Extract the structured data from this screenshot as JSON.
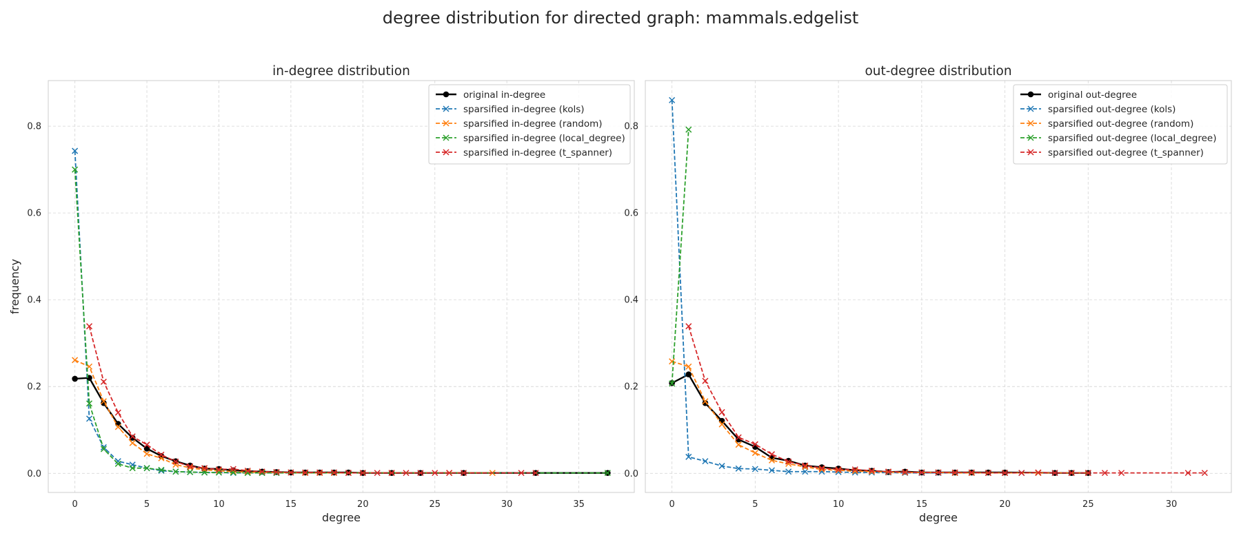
{
  "figure": {
    "title": "degree distribution for directed graph: mammals.edgelist"
  },
  "chart_data": [
    {
      "type": "line",
      "title": "in-degree distribution",
      "xlabel": "degree",
      "ylabel": "frequency",
      "xlim": [
        -1.85,
        38.85
      ],
      "ylim": [
        -0.044,
        0.905
      ],
      "xticks": [
        0,
        5,
        10,
        15,
        20,
        25,
        30,
        35
      ],
      "yticks": [
        0.0,
        0.2,
        0.4,
        0.6,
        0.8
      ],
      "ytick_labels": [
        "0.0",
        "0.2",
        "0.4",
        "0.6",
        "0.8"
      ],
      "grid": true,
      "legend": "top-right",
      "series": [
        {
          "name": "original in-degree",
          "color": "#000000",
          "marker": "dot",
          "style": "solid",
          "x": [
            0,
            1,
            2,
            3,
            4,
            5,
            6,
            7,
            8,
            9,
            10,
            11,
            12,
            13,
            14,
            15,
            16,
            17,
            18,
            19,
            20,
            22,
            24,
            27,
            32,
            37
          ],
          "y": [
            0.218,
            0.22,
            0.162,
            0.114,
            0.082,
            0.057,
            0.04,
            0.028,
            0.018,
            0.011,
            0.01,
            0.007,
            0.005,
            0.004,
            0.003,
            0.002,
            0.002,
            0.002,
            0.002,
            0.002,
            0.001,
            0.001,
            0.001,
            0.001,
            0.001,
            0.001
          ]
        },
        {
          "name": "sparsified in-degree (kols)",
          "color": "#1f77b4",
          "marker": "x",
          "style": "dashed",
          "x": [
            0,
            1,
            2,
            3,
            4,
            5,
            6,
            7,
            8,
            9,
            10,
            11,
            12,
            13,
            14
          ],
          "y": [
            0.743,
            0.126,
            0.06,
            0.028,
            0.02,
            0.012,
            0.006,
            0.004,
            0.003,
            0.002,
            0.002,
            0.001,
            0.001,
            0.001,
            0.001
          ]
        },
        {
          "name": "sparsified in-degree (random)",
          "color": "#ff7f0e",
          "marker": "x",
          "style": "dashed",
          "x": [
            0,
            1,
            2,
            3,
            4,
            5,
            6,
            7,
            8,
            9,
            10,
            11,
            12,
            13,
            14,
            15,
            16,
            17,
            18,
            19,
            20,
            22,
            26,
            29
          ],
          "y": [
            0.261,
            0.246,
            0.166,
            0.107,
            0.07,
            0.045,
            0.035,
            0.02,
            0.013,
            0.008,
            0.006,
            0.004,
            0.003,
            0.002,
            0.002,
            0.002,
            0.001,
            0.001,
            0.001,
            0.001,
            0.001,
            0.001,
            0.001,
            0.001
          ]
        },
        {
          "name": "sparsified in-degree (local_degree)",
          "color": "#2ca02c",
          "marker": "x",
          "style": "dashed",
          "x": [
            0,
            1,
            2,
            3,
            4,
            5,
            6,
            7,
            8,
            9,
            10,
            11,
            12,
            13,
            14,
            37
          ],
          "y": [
            0.7,
            0.161,
            0.056,
            0.022,
            0.012,
            0.012,
            0.008,
            0.004,
            0.003,
            0.002,
            0.002,
            0.002,
            0.001,
            0.001,
            0.001,
            0.001
          ]
        },
        {
          "name": "sparsified in-degree (t_spanner)",
          "color": "#d62728",
          "marker": "x",
          "style": "dashed",
          "x": [
            1,
            2,
            3,
            4,
            5,
            6,
            7,
            8,
            9,
            10,
            11,
            12,
            13,
            14,
            15,
            16,
            17,
            18,
            19,
            20,
            21,
            22,
            23,
            24,
            25,
            26,
            27,
            31,
            32
          ],
          "y": [
            0.339,
            0.211,
            0.14,
            0.085,
            0.066,
            0.043,
            0.027,
            0.016,
            0.012,
            0.009,
            0.01,
            0.006,
            0.004,
            0.003,
            0.002,
            0.002,
            0.002,
            0.002,
            0.001,
            0.001,
            0.001,
            0.001,
            0.001,
            0.001,
            0.001,
            0.001,
            0.001,
            0.001,
            0.001
          ]
        }
      ]
    },
    {
      "type": "line",
      "title": "out-degree distribution",
      "xlabel": "degree",
      "ylabel": "",
      "xlim": [
        -1.6,
        33.6
      ],
      "ylim": [
        -0.044,
        0.905
      ],
      "xticks": [
        0,
        5,
        10,
        15,
        20,
        25,
        30
      ],
      "yticks": [
        0.0,
        0.2,
        0.4,
        0.6,
        0.8
      ],
      "grid": true,
      "legend": "top-right",
      "series": [
        {
          "name": "original out-degree",
          "color": "#000000",
          "marker": "dot",
          "style": "solid",
          "x": [
            0,
            1,
            2,
            3,
            4,
            5,
            6,
            7,
            8,
            9,
            10,
            11,
            12,
            13,
            14,
            15,
            16,
            17,
            18,
            19,
            20,
            23,
            24,
            25
          ],
          "y": [
            0.208,
            0.228,
            0.162,
            0.121,
            0.078,
            0.061,
            0.036,
            0.029,
            0.018,
            0.014,
            0.011,
            0.007,
            0.006,
            0.003,
            0.004,
            0.002,
            0.002,
            0.002,
            0.002,
            0.002,
            0.002,
            0.001,
            0.001,
            0.001
          ]
        },
        {
          "name": "sparsified out-degree (kols)",
          "color": "#1f77b4",
          "marker": "x",
          "style": "dashed",
          "x": [
            0,
            1,
            2,
            3,
            4,
            5,
            6,
            7,
            8,
            9,
            10,
            11,
            12,
            13,
            14,
            15,
            16,
            17,
            18,
            19,
            20,
            21,
            22,
            23,
            24,
            25
          ],
          "y": [
            0.86,
            0.038,
            0.028,
            0.017,
            0.011,
            0.01,
            0.007,
            0.004,
            0.004,
            0.004,
            0.003,
            0.002,
            0.002,
            0.002,
            0.001,
            0.001,
            0.001,
            0.001,
            0.001,
            0.001,
            0.001,
            0.001,
            0.001,
            0.001,
            0.001,
            0.001
          ]
        },
        {
          "name": "sparsified out-degree (random)",
          "color": "#ff7f0e",
          "marker": "x",
          "style": "dashed",
          "x": [
            0,
            1,
            2,
            3,
            4,
            5,
            6,
            7,
            8,
            9,
            10,
            11,
            12,
            13,
            14,
            15,
            16,
            17,
            18,
            19,
            20,
            22,
            24,
            25
          ],
          "y": [
            0.258,
            0.246,
            0.166,
            0.113,
            0.066,
            0.047,
            0.03,
            0.022,
            0.015,
            0.009,
            0.007,
            0.005,
            0.004,
            0.003,
            0.002,
            0.002,
            0.002,
            0.001,
            0.001,
            0.001,
            0.001,
            0.001,
            0.001,
            0.001
          ]
        },
        {
          "name": "sparsified out-degree (local_degree)",
          "color": "#2ca02c",
          "marker": "x",
          "style": "dashed",
          "x": [
            0,
            1
          ],
          "y": [
            0.207,
            0.792
          ]
        },
        {
          "name": "sparsified out-degree (t_spanner)",
          "color": "#d62728",
          "marker": "x",
          "style": "dashed",
          "x": [
            1,
            2,
            3,
            4,
            5,
            6,
            7,
            8,
            9,
            10,
            11,
            12,
            13,
            14,
            15,
            16,
            17,
            18,
            19,
            20,
            21,
            22,
            23,
            24,
            25,
            26,
            27,
            31,
            32
          ],
          "y": [
            0.339,
            0.213,
            0.141,
            0.083,
            0.067,
            0.044,
            0.027,
            0.018,
            0.012,
            0.009,
            0.009,
            0.006,
            0.004,
            0.003,
            0.002,
            0.002,
            0.002,
            0.002,
            0.001,
            0.001,
            0.001,
            0.002,
            0.001,
            0.001,
            0.001,
            0.001,
            0.001,
            0.001,
            0.001
          ]
        }
      ]
    }
  ]
}
